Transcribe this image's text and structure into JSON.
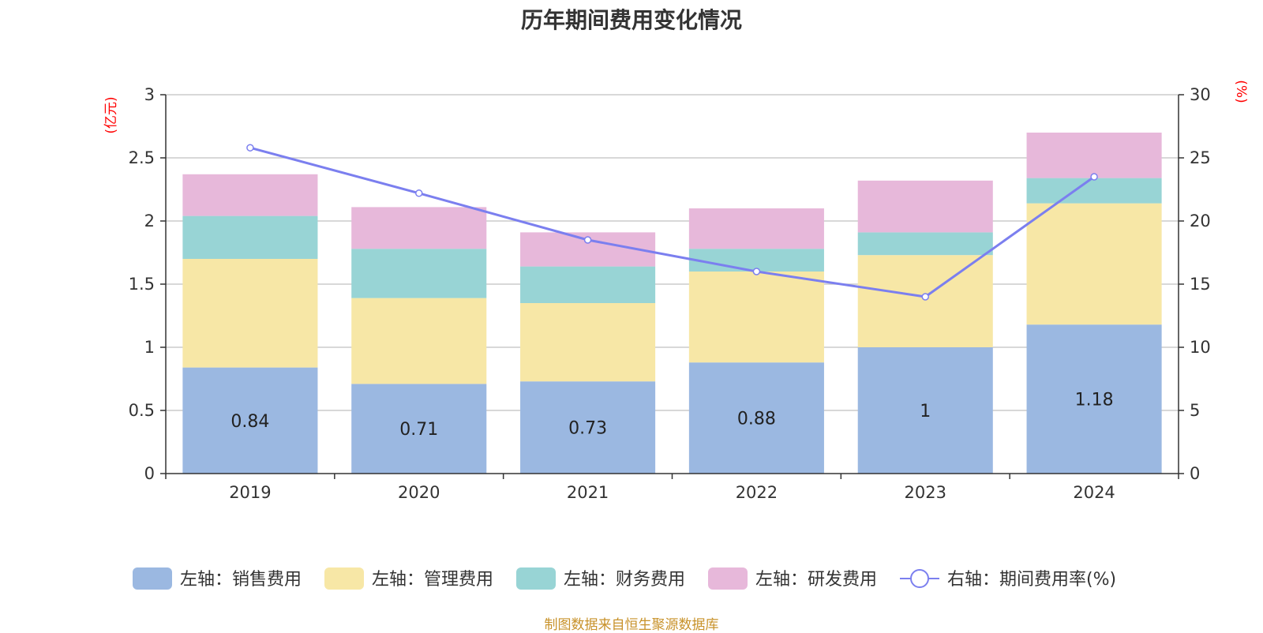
{
  "title": "历年期间费用变化情况",
  "source": "制图数据来自恒生聚源数据库",
  "chart_data": {
    "type": "bar",
    "stacked": true,
    "title": "历年期间费用变化情况",
    "categories": [
      "2019",
      "2020",
      "2021",
      "2022",
      "2023",
      "2024"
    ],
    "left_axis": {
      "unit": "(亿元)",
      "ylim": [
        0,
        3
      ],
      "ticks": [
        "0",
        "0.5",
        "1",
        "1.5",
        "2",
        "2.5",
        "3"
      ]
    },
    "right_axis": {
      "unit": "(%)",
      "ylim": [
        0,
        30
      ],
      "ticks": [
        "0",
        "5",
        "10",
        "15",
        "20",
        "25",
        "30"
      ]
    },
    "grid": true,
    "legend_position": "bottom",
    "series": [
      {
        "name": "左轴：销售费用",
        "type": "bar",
        "axis": "left",
        "color": "#9bb8e1",
        "values": [
          0.84,
          0.71,
          0.73,
          0.88,
          1,
          1.18
        ],
        "labels": [
          "0.84",
          "0.71",
          "0.73",
          "0.88",
          "1",
          "1.18"
        ]
      },
      {
        "name": "左轴：管理费用",
        "type": "bar",
        "axis": "left",
        "color": "#f7e7a6",
        "values": [
          0.86,
          0.68,
          0.62,
          0.72,
          0.73,
          0.96
        ]
      },
      {
        "name": "左轴：财务费用",
        "type": "bar",
        "axis": "left",
        "color": "#98d4d5",
        "values": [
          0.34,
          0.39,
          0.29,
          0.18,
          0.18,
          0.2
        ]
      },
      {
        "name": "左轴：研发费用",
        "type": "bar",
        "axis": "left",
        "color": "#e7b8da",
        "values": [
          0.33,
          0.33,
          0.27,
          0.32,
          0.41,
          0.36
        ]
      },
      {
        "name": "右轴：期间费用率(%)",
        "type": "line",
        "axis": "right",
        "color": "#7b7fef",
        "values": [
          25.8,
          22.2,
          18.5,
          16.0,
          14.0,
          23.5
        ]
      }
    ]
  }
}
